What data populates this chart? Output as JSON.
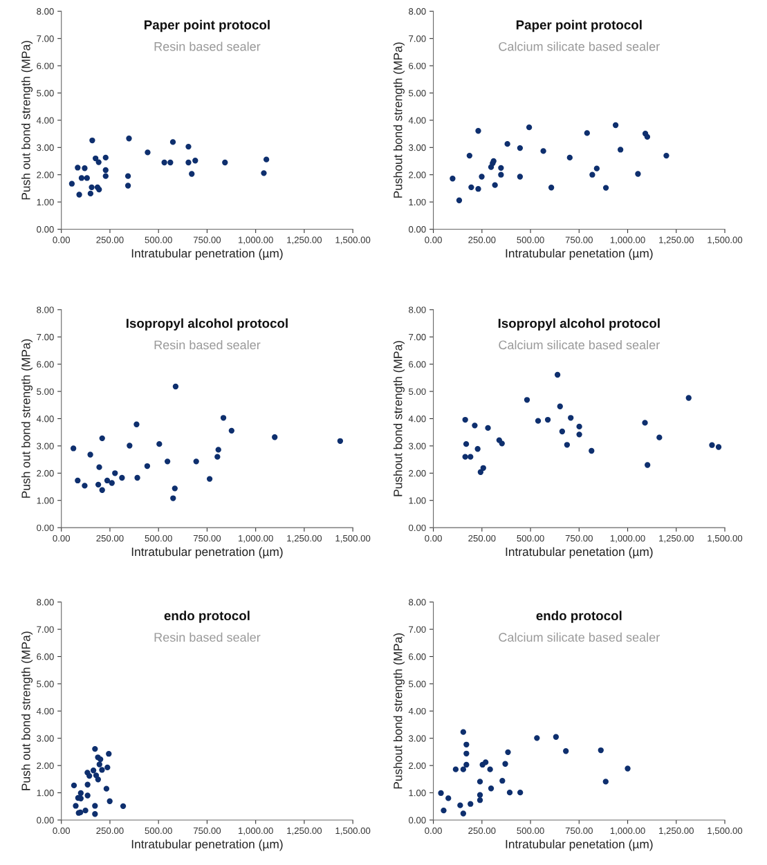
{
  "chart_data": [
    {
      "type": "scatter",
      "title": "Paper point protocol",
      "subtitle": "Resin based sealer",
      "xlabel": "Intratubular penetration (µm)",
      "ylabel": "Push out bond strength (MPa)",
      "color": "#0e2f6e",
      "marker": "circle",
      "grid": false,
      "legend": false,
      "xlim": [
        0,
        1500
      ],
      "ylim": [
        0,
        8
      ],
      "xticks": [
        {
          "value": 0,
          "label": "0.00"
        },
        {
          "value": 250,
          "label": "250.00"
        },
        {
          "value": 500,
          "label": "500.00"
        },
        {
          "value": 750,
          "label": "750.00"
        },
        {
          "value": 1000,
          "label": "1,000.00"
        },
        {
          "value": 1250,
          "label": "1,250.00"
        },
        {
          "value": 1500,
          "label": "1,500.00"
        }
      ],
      "yticks": [
        {
          "value": 0,
          "label": "0.00"
        },
        {
          "value": 1,
          "label": "1.00"
        },
        {
          "value": 2,
          "label": "2.00"
        },
        {
          "value": 3,
          "label": "3.00"
        },
        {
          "value": 4,
          "label": "4.00"
        },
        {
          "value": 5,
          "label": "5.00"
        },
        {
          "value": 6,
          "label": "6.00"
        },
        {
          "value": 7,
          "label": "7.00"
        },
        {
          "value": 8,
          "label": "8.00"
        }
      ],
      "x": [
        54,
        84,
        92,
        120,
        104,
        132,
        156,
        150,
        159,
        176,
        192,
        186,
        194,
        228,
        228,
        228,
        348,
        343,
        343,
        444,
        530,
        561,
        574,
        654,
        654,
        689,
        671,
        842,
        1042,
        1055
      ],
      "values": [
        1.67,
        2.26,
        1.27,
        2.24,
        1.88,
        1.88,
        1.54,
        1.31,
        3.26,
        2.6,
        2.46,
        1.54,
        1.46,
        2.63,
        2.17,
        1.95,
        3.33,
        1.95,
        1.6,
        2.82,
        2.45,
        2.45,
        3.2,
        3.03,
        2.45,
        2.52,
        2.03,
        2.45,
        2.06,
        2.56
      ]
    },
    {
      "type": "scatter",
      "title": "Paper point protocol",
      "subtitle": "Calcium silicate based sealer",
      "xlabel": "Intratubular penetation (µm)",
      "ylabel": "Pushout bond strength (MPa)",
      "color": "#0e2f6e",
      "marker": "circle",
      "grid": false,
      "legend": false,
      "xlim": [
        0,
        1500
      ],
      "ylim": [
        0,
        8
      ],
      "xticks": [
        {
          "value": 0,
          "label": "0.00"
        },
        {
          "value": 250,
          "label": "250.00"
        },
        {
          "value": 500,
          "label": "500.00"
        },
        {
          "value": 750,
          "label": "750.00"
        },
        {
          "value": 1000,
          "label": "1,000.00"
        },
        {
          "value": 1250,
          "label": "1,250.00"
        },
        {
          "value": 1500,
          "label": "1,500.00"
        }
      ],
      "yticks": [
        {
          "value": 0,
          "label": "0.00"
        },
        {
          "value": 1,
          "label": "1.00"
        },
        {
          "value": 2,
          "label": "2.00"
        },
        {
          "value": 3,
          "label": "3.00"
        },
        {
          "value": 4,
          "label": "4.00"
        },
        {
          "value": 5,
          "label": "5.00"
        },
        {
          "value": 6,
          "label": "6.00"
        },
        {
          "value": 7,
          "label": "7.00"
        },
        {
          "value": 8,
          "label": "8.00"
        }
      ],
      "x": [
        99,
        133,
        186,
        195,
        231,
        231,
        249,
        297,
        305,
        310,
        317,
        348,
        348,
        381,
        446,
        446,
        493,
        566,
        607,
        702,
        791,
        818,
        841,
        888,
        938,
        963,
        1053,
        1091,
        1101,
        1199
      ],
      "values": [
        1.86,
        1.06,
        2.7,
        1.54,
        3.61,
        1.48,
        1.93,
        2.28,
        2.42,
        2.5,
        1.62,
        2.25,
        2.0,
        3.13,
        2.98,
        1.93,
        3.74,
        2.87,
        1.53,
        2.63,
        3.53,
        2.0,
        2.23,
        1.52,
        3.82,
        2.92,
        2.03,
        3.51,
        3.39,
        2.7
      ]
    },
    {
      "type": "scatter",
      "title": "Isopropyl alcohol protocol",
      "subtitle": "Resin based sealer",
      "xlabel": "Intratubular penetration (µm)",
      "ylabel": "Push out bond strength (MPa)",
      "color": "#0e2f6e",
      "marker": "circle",
      "grid": false,
      "legend": false,
      "xlim": [
        0,
        1500
      ],
      "ylim": [
        0,
        8
      ],
      "xticks": [
        {
          "value": 0,
          "label": "0.00"
        },
        {
          "value": 250,
          "label": "250.00"
        },
        {
          "value": 500,
          "label": "500.00"
        },
        {
          "value": 750,
          "label": "750.00"
        },
        {
          "value": 1000,
          "label": "1,000.00"
        },
        {
          "value": 1250,
          "label": "1,250.00"
        },
        {
          "value": 1500,
          "label": "1,500.00"
        }
      ],
      "yticks": [
        {
          "value": 0,
          "label": "0.00"
        },
        {
          "value": 1,
          "label": "1.00"
        },
        {
          "value": 2,
          "label": "2.00"
        },
        {
          "value": 3,
          "label": "3.00"
        },
        {
          "value": 4,
          "label": "4.00"
        },
        {
          "value": 5,
          "label": "5.00"
        },
        {
          "value": 6,
          "label": "6.00"
        },
        {
          "value": 7,
          "label": "7.00"
        },
        {
          "value": 8,
          "label": "8.00"
        }
      ],
      "x": [
        62,
        84,
        120,
        149,
        195,
        190,
        210,
        210,
        236,
        260,
        276,
        312,
        351,
        387,
        391,
        442,
        504,
        546,
        588,
        584,
        575,
        694,
        763,
        808,
        803,
        834,
        876,
        1098,
        1435
      ],
      "values": [
        2.91,
        1.73,
        1.54,
        2.68,
        2.22,
        1.58,
        3.28,
        1.38,
        1.73,
        1.64,
        2.0,
        1.83,
        3.01,
        3.79,
        1.83,
        2.26,
        3.07,
        2.43,
        5.18,
        1.44,
        1.08,
        2.43,
        1.79,
        2.86,
        2.6,
        4.03,
        3.56,
        3.32,
        3.18
      ]
    },
    {
      "type": "scatter",
      "title": "Isopropyl alcohol protocol",
      "subtitle": "Calcium silicate based sealer",
      "xlabel": "Intratubular penetation (µm)",
      "ylabel": "Pushout bond strength (MPa)",
      "color": "#0e2f6e",
      "marker": "circle",
      "grid": false,
      "legend": false,
      "xlim": [
        0,
        1500
      ],
      "ylim": [
        0,
        8
      ],
      "xticks": [
        {
          "value": 0,
          "label": "0.00"
        },
        {
          "value": 250,
          "label": "250.00"
        },
        {
          "value": 500,
          "label": "500.00"
        },
        {
          "value": 750,
          "label": "750.00"
        },
        {
          "value": 1000,
          "label": "1,000.00"
        },
        {
          "value": 1250,
          "label": "1,250.00"
        },
        {
          "value": 1500,
          "label": "1,500.00"
        }
      ],
      "yticks": [
        {
          "value": 0,
          "label": "0.00"
        },
        {
          "value": 1,
          "label": "1.00"
        },
        {
          "value": 2,
          "label": "2.00"
        },
        {
          "value": 3,
          "label": "3.00"
        },
        {
          "value": 4,
          "label": "4.00"
        },
        {
          "value": 5,
          "label": "5.00"
        },
        {
          "value": 6,
          "label": "6.00"
        },
        {
          "value": 7,
          "label": "7.00"
        },
        {
          "value": 8,
          "label": "8.00"
        }
      ],
      "x": [
        164,
        169,
        164,
        191,
        213,
        228,
        243,
        257,
        281,
        339,
        353,
        482,
        539,
        589,
        639,
        652,
        663,
        688,
        707,
        751,
        751,
        814,
        1089,
        1102,
        1163,
        1314,
        1434,
        1468
      ],
      "values": [
        3.96,
        3.07,
        2.6,
        2.6,
        3.75,
        2.89,
        2.04,
        2.19,
        3.66,
        3.21,
        3.09,
        4.69,
        3.92,
        3.96,
        5.61,
        4.45,
        3.53,
        3.04,
        4.03,
        3.71,
        3.42,
        2.82,
        3.85,
        2.3,
        3.31,
        4.76,
        3.03,
        2.96
      ]
    },
    {
      "type": "scatter",
      "title": "endo protocol",
      "subtitle": "Resin based sealer",
      "xlabel": "Intratubular penetration (µm)",
      "ylabel": "Push out bond strength (MPa)",
      "color": "#0e2f6e",
      "marker": "circle",
      "grid": false,
      "legend": false,
      "xlim": [
        0,
        1500
      ],
      "ylim": [
        0,
        8
      ],
      "xticks": [
        {
          "value": 0,
          "label": "0.00"
        },
        {
          "value": 250,
          "label": "250.00"
        },
        {
          "value": 500,
          "label": "500.00"
        },
        {
          "value": 750,
          "label": "750.00"
        },
        {
          "value": 1000,
          "label": "1,000.00"
        },
        {
          "value": 1250,
          "label": "1,250.00"
        },
        {
          "value": 1500,
          "label": "1,500.00"
        }
      ],
      "yticks": [
        {
          "value": 0,
          "label": "0.00"
        },
        {
          "value": 1,
          "label": "1.00"
        },
        {
          "value": 2,
          "label": "2.00"
        },
        {
          "value": 3,
          "label": "3.00"
        },
        {
          "value": 4,
          "label": "4.00"
        },
        {
          "value": 5,
          "label": "5.00"
        },
        {
          "value": 6,
          "label": "6.00"
        },
        {
          "value": 7,
          "label": "7.00"
        },
        {
          "value": 8,
          "label": "8.00"
        }
      ],
      "x": [
        65,
        74,
        89,
        98,
        86,
        100,
        100,
        124,
        135,
        135,
        134,
        144,
        165,
        173,
        173,
        173,
        179,
        189,
        188,
        201,
        196,
        209,
        237,
        244,
        232,
        249,
        318
      ],
      "values": [
        1.27,
        0.52,
        0.26,
        0.28,
        0.81,
        0.79,
        0.99,
        0.35,
        1.3,
        0.9,
        1.74,
        1.62,
        1.82,
        2.61,
        0.52,
        0.22,
        1.64,
        1.49,
        2.3,
        2.23,
        2.04,
        1.84,
        1.93,
        2.43,
        1.15,
        0.69,
        0.51
      ]
    },
    {
      "type": "scatter",
      "title": "endo protocol",
      "subtitle": "Calcium silicate based sealer",
      "xlabel": "Intratubular penetation (µm)",
      "ylabel": "Pushout bond strength (MPa)",
      "color": "#0e2f6e",
      "marker": "circle",
      "grid": false,
      "legend": false,
      "xlim": [
        0,
        1500
      ],
      "ylim": [
        0,
        8
      ],
      "xticks": [
        {
          "value": 0,
          "label": "0.00"
        },
        {
          "value": 250,
          "label": "250.00"
        },
        {
          "value": 500,
          "label": "500.00"
        },
        {
          "value": 750,
          "label": "750.00"
        },
        {
          "value": 1000,
          "label": "1,000.00"
        },
        {
          "value": 1250,
          "label": "1,250.00"
        },
        {
          "value": 1500,
          "label": "1,500.00"
        }
      ],
      "yticks": [
        {
          "value": 0,
          "label": "0.00"
        },
        {
          "value": 1,
          "label": "1.00"
        },
        {
          "value": 2,
          "label": "2.00"
        },
        {
          "value": 3,
          "label": "3.00"
        },
        {
          "value": 4,
          "label": "4.00"
        },
        {
          "value": 5,
          "label": "5.00"
        },
        {
          "value": 6,
          "label": "6.00"
        },
        {
          "value": 7,
          "label": "7.00"
        },
        {
          "value": 8,
          "label": "8.00"
        }
      ],
      "x": [
        39,
        53,
        77,
        115,
        138,
        154,
        154,
        154,
        170,
        170,
        170,
        191,
        240,
        240,
        240,
        253,
        269,
        292,
        297,
        355,
        370,
        384,
        393,
        447,
        533,
        631,
        682,
        862,
        887,
        1000
      ],
      "values": [
        0.99,
        0.35,
        0.8,
        1.86,
        0.54,
        0.24,
        1.86,
        3.23,
        2.77,
        2.44,
        2.03,
        0.59,
        1.41,
        0.92,
        0.73,
        2.03,
        2.12,
        1.86,
        1.16,
        1.44,
        2.06,
        2.49,
        1.01,
        1.01,
        3.01,
        3.05,
        2.53,
        2.56,
        1.41,
        1.89
      ]
    }
  ]
}
